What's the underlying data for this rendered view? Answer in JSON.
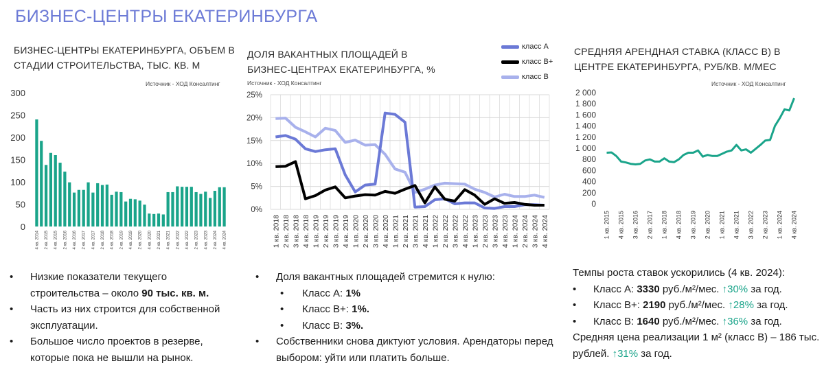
{
  "page": {
    "title": "БИЗНЕС-ЦЕНТРЫ ЕКАТЕРИНБУРГА"
  },
  "colors": {
    "title": "#6c7ad6",
    "bar": "#1aa48a",
    "line_teal": "#1aa48a",
    "class_a": "#6b79d6",
    "class_bplus": "#000000",
    "class_b": "#a8b1ec",
    "up_arrow": "#1aa48a"
  },
  "chart1": {
    "title_line1": "БИЗНЕС-ЦЕНТРЫ ЕКАТЕРИНБУРГА, ОБЪЕМ В",
    "title_line2": "СТАДИИ СТРОИТЕЛЬСТВА, ТЫС. КВ. М",
    "source": "Источник - ХОД Консалтинг"
  },
  "chart2": {
    "title_line1": "ДОЛЯ ВАКАНТНЫХ ПЛОЩАДЕЙ В",
    "title_line2": "БИЗНЕС-ЦЕНТРАХ ЕКАТЕРИНБУРГА, %",
    "source": "Источник - ХОД Консалтинг",
    "legend": [
      "класс А",
      "класс В+",
      "класс В"
    ]
  },
  "chart3": {
    "title_line1": "СРЕДНЯЯ АРЕНДНАЯ СТАВКА (КЛАСС В) В",
    "title_line2": "ЦЕНТРЕ ЕКАТЕРИНБУРГА, РУБ/КВ. М/МЕС",
    "source": "Источник - ХОД Консалтинг"
  },
  "chart_data": [
    {
      "type": "bar",
      "ylim": [
        0,
        300
      ],
      "yticks": [
        0,
        50,
        100,
        150,
        200,
        250,
        300
      ],
      "grid": false,
      "categories": [
        "4 кв. 2014",
        "1 кв. 2015",
        "2 кв. 2015",
        "3 кв. 2015",
        "4 кв. 2015",
        "1 кв. 2016",
        "2 кв. 2016",
        "3 кв. 2016",
        "4 кв. 2016",
        "1 кв. 2017",
        "2 кв. 2017",
        "3 кв. 2017",
        "4 кв. 2017",
        "1 кв. 2018",
        "2 кв. 2018",
        "3 кв. 2018",
        "4 кв. 2018",
        "1 кв. 2019",
        "2 кв. 2019",
        "3 кв. 2019",
        "4 кв. 2019",
        "1 кв. 2020",
        "2 кв. 2020",
        "3 кв. 2020",
        "4 кв. 2020",
        "1 кв. 2021",
        "2 кв. 2021",
        "3 кв. 2021",
        "4 кв. 2021",
        "1 кв. 2022",
        "2 кв. 2022",
        "3 кв. 2022",
        "4 кв. 2022",
        "1 кв. 2023",
        "2 кв. 2023",
        "3 кв. 2023",
        "4 кв. 2023",
        "1 кв. 2024",
        "2 кв. 2024",
        "3 кв. 2024",
        "4 кв. 2024"
      ],
      "xtick_labels": [
        "4 кв. 2014",
        "",
        "2 кв. 2015",
        "",
        "4 кв. 2015",
        "",
        "2 кв. 2016",
        "",
        "4 кв. 2016",
        "",
        "2 кв. 2017",
        "",
        "4 кв. 2017",
        "",
        "2 кв. 2018",
        "",
        "4 кв. 2018",
        "",
        "2 кв. 2019",
        "",
        "4 кв. 2019",
        "",
        "2 кв. 2020",
        "",
        "4 кв. 2020",
        "",
        "2 кв. 2021",
        "",
        "4 кв. 2021",
        "",
        "2 кв. 2022",
        "",
        "4 кв. 2022",
        "",
        "2 кв. 2023",
        "",
        "4 кв. 2023",
        "",
        "2 кв. 2024",
        "",
        "4 кв. 2024"
      ],
      "values": [
        240,
        192,
        138,
        165,
        160,
        143,
        123,
        99,
        76,
        82,
        82,
        99,
        76,
        97,
        93,
        94,
        71,
        78,
        77,
        56,
        62,
        61,
        58,
        49,
        29,
        28,
        29,
        27,
        77,
        77,
        90,
        89,
        89,
        89,
        77,
        73,
        78,
        64,
        80,
        88,
        88
      ]
    },
    {
      "type": "line",
      "ylim": [
        0,
        25
      ],
      "yticks": [
        "0%",
        "5%",
        "10%",
        "15%",
        "20%",
        "25%"
      ],
      "grid": true,
      "legend_position": "top-right",
      "x": [
        "1 кв. 2018",
        "2 кв. 2018",
        "3 кв. 2018",
        "4 кв. 2018",
        "1 кв. 2019",
        "2 кв. 2019",
        "3 кв. 2019",
        "4 кв. 2019",
        "1 кв. 2020",
        "2 кв. 2020",
        "3 кв. 2020",
        "4 кв. 2020",
        "1 кв. 2021",
        "2 кв. 2021",
        "3 кв. 2021",
        "4 кв. 2021",
        "1 кв. 2022",
        "2 кв. 2022",
        "3 кв. 2022",
        "4 кв. 2022",
        "1 кв. 2023",
        "2 кв. 2023",
        "3 кв. 2023",
        "4 кв. 2023",
        "1 кв. 2024",
        "2 кв. 2024",
        "3 кв. 2024",
        "4 кв. 2024"
      ],
      "series": [
        {
          "name": "класс А",
          "values": [
            15.8,
            16.1,
            15.3,
            13.2,
            12.6,
            13.0,
            13.2,
            7.5,
            3.8,
            5.3,
            5.5,
            21.0,
            20.7,
            19.0,
            0.5,
            0.6,
            2.1,
            2.3,
            1.2,
            1.4,
            1.4,
            0.3,
            0.2,
            0.6,
            0.6,
            1.0,
            1.0,
            0.9
          ]
        },
        {
          "name": "класс В+",
          "values": [
            9.3,
            9.4,
            10.4,
            2.3,
            3.0,
            4.2,
            4.9,
            2.5,
            2.9,
            3.2,
            3.1,
            3.9,
            3.5,
            4.4,
            5.2,
            1.4,
            4.9,
            2.2,
            1.8,
            4.3,
            3.1,
            1.1,
            2.3,
            1.3,
            1.5,
            1.1,
            0.9,
            0.9
          ]
        },
        {
          "name": "класс В",
          "values": [
            19.8,
            19.9,
            17.9,
            16.9,
            15.8,
            17.7,
            17.2,
            14.6,
            15.1,
            14.0,
            14.1,
            12.0,
            8.8,
            8.1,
            3.7,
            4.4,
            5.3,
            5.7,
            5.6,
            5.5,
            4.4,
            3.7,
            2.7,
            3.3,
            2.8,
            2.8,
            3.1,
            2.6
          ]
        }
      ]
    },
    {
      "type": "line",
      "ylim": [
        0,
        2000
      ],
      "yticks": [
        "0",
        "200",
        "400",
        "600",
        "800",
        "1 000",
        "1 200",
        "1 400",
        "1 600",
        "1 800",
        "2 000"
      ],
      "grid": false,
      "xtick_labels": [
        "1 кв. 2015",
        "4 кв. 2015",
        "3 кв. 2016",
        "2 кв. 2017",
        "1 кв. 2018",
        "4 кв. 2018",
        "3 кв. 2019",
        "2 кв. 2020",
        "1 кв. 2021",
        "4 кв. 2021",
        "3 кв. 2022",
        "2 кв. 2023",
        "1 кв. 2024",
        "4 кв. 2024"
      ],
      "series": [
        {
          "values": [
            920,
            925,
            860,
            760,
            745,
            720,
            710,
            720,
            780,
            800,
            760,
            760,
            820,
            760,
            750,
            800,
            880,
            920,
            920,
            960,
            850,
            880,
            860,
            860,
            900,
            940,
            960,
            1060,
            960,
            980,
            920,
            990,
            1060,
            1140,
            1150,
            1400,
            1540,
            1700,
            1680,
            1900
          ]
        }
      ]
    }
  ],
  "bullets1": [
    {
      "pre": "Низкие показатели текущего строительства – около ",
      "bold": "90 тыс. кв. м.",
      "post": ""
    },
    {
      "text": "Часть из них строится для собственной эксплуатации."
    },
    {
      "text": "Большое число проектов в резерве, которые пока не вышли на рынок."
    }
  ],
  "bullets2": {
    "intro": "Доля вакантных площадей стремится к нулю:",
    "items": [
      {
        "label": "Класс А: ",
        "value": "1%"
      },
      {
        "label": "Класс В+: ",
        "value": "1%."
      },
      {
        "label": "Класс В: ",
        "value": "3%."
      }
    ],
    "outro": "Собственники снова диктуют условия. Арендаторы перед выбором: уйти или платить больше."
  },
  "bullets3": {
    "intro": "Темпы роста ставок ускорились (4 кв. 2024):",
    "items": [
      {
        "label": "Класс А: ",
        "value": "3330",
        "unit": " руб./м²/мес. ",
        "growth": "↑30%",
        "tail": " за год."
      },
      {
        "label": "Класс В+: ",
        "value": "2190",
        "unit": " руб./м²/мес. ",
        "growth": "↑28%",
        "tail": " за год."
      },
      {
        "label": "Класс В: ",
        "value": "1640",
        "unit": " руб./м²/мес. ",
        "growth": "↑36%",
        "tail": " за год."
      }
    ],
    "outro_pre": "Средняя цена реализации 1 м² (класс В) – 186 тыс. рублей. ",
    "outro_growth": "↑31%",
    "outro_tail": " за год."
  }
}
